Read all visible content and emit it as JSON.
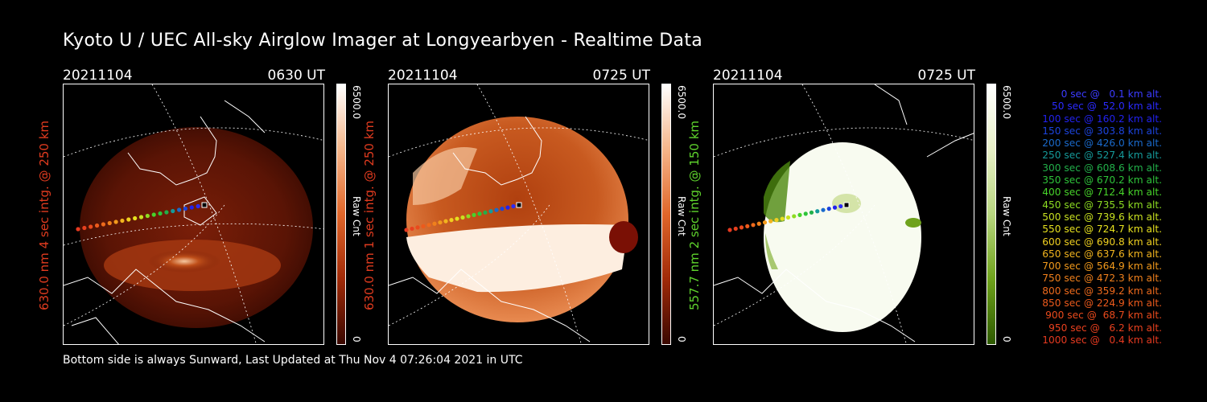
{
  "page": {
    "title": "Kyoto U / UEC All-sky Airglow Imager at Longyearbyen - Realtime Data",
    "footer": "Bottom side is always Sunward, Last Updated at Thu Nov  4 07:26:04 2021 in UTC"
  },
  "panels": [
    {
      "date": "20211104",
      "time": "0630 UT",
      "ylabel": "630.0 nm 4 sec intg. @ 250 km",
      "label_color": "#e03b1f",
      "cbar_max": "6500.0",
      "cbar_min": "0",
      "cbar_unit": "Raw Cnt",
      "scheme": "red",
      "scheme_colors": [
        "#ffffff",
        "#f5b68a",
        "#e0662a",
        "#a02a08",
        "#3a0800"
      ]
    },
    {
      "date": "20211104",
      "time": "0725 UT",
      "ylabel": "630.0 nm 1 sec intg. @ 250 km",
      "label_color": "#e03b1f",
      "cbar_max": "6500.0",
      "cbar_min": "0",
      "cbar_unit": "Raw Cnt",
      "scheme": "red-bright",
      "scheme_colors": [
        "#ffffff",
        "#f5b68a",
        "#e0662a",
        "#a02a08",
        "#3a0800"
      ]
    },
    {
      "date": "20211104",
      "time": "0725 UT",
      "ylabel": "557.7 nm 2 sec intg. @ 150 km",
      "label_color": "#5fd32d",
      "cbar_max": "6500.0",
      "cbar_min": "0",
      "cbar_unit": "Raw Cnt",
      "scheme": "green",
      "scheme_colors": [
        "#ffffff",
        "#e8f0c8",
        "#b8d680",
        "#6fa21c",
        "#2e5a00"
      ]
    }
  ],
  "legend": [
    {
      "text": "0 sec @   0.1 km alt.",
      "color": "#3b3bff"
    },
    {
      "text": "50 sec @  52.0 km alt.",
      "color": "#2a2aff"
    },
    {
      "text": "100 sec @ 160.2 km alt.",
      "color": "#2222ee"
    },
    {
      "text": "150 sec @ 303.8 km alt.",
      "color": "#1c44dd"
    },
    {
      "text": "200 sec @ 426.0 km alt.",
      "color": "#1a6acc"
    },
    {
      "text": "250 sec @ 527.4 km alt.",
      "color": "#159a9a"
    },
    {
      "text": "300 sec @ 608.6 km alt.",
      "color": "#22b04a"
    },
    {
      "text": "350 sec @ 670.2 km alt.",
      "color": "#2ec43a"
    },
    {
      "text": "400 sec @ 712.4 km alt.",
      "color": "#47d42a"
    },
    {
      "text": "450 sec @ 735.5 km alt.",
      "color": "#8ddc22"
    },
    {
      "text": "500 sec @ 739.6 km alt.",
      "color": "#c8e020"
    },
    {
      "text": "550 sec @ 724.7 km alt.",
      "color": "#e6e01e"
    },
    {
      "text": "600 sec @ 690.8 km alt.",
      "color": "#f0d020"
    },
    {
      "text": "650 sec @ 637.6 km alt.",
      "color": "#f2b41e"
    },
    {
      "text": "700 sec @ 564.9 km alt.",
      "color": "#f29a1c"
    },
    {
      "text": "750 sec @ 472.3 km alt.",
      "color": "#f0801c"
    },
    {
      "text": "800 sec @ 359.2 km alt.",
      "color": "#ee6a1c"
    },
    {
      "text": "850 sec @ 224.9 km alt.",
      "color": "#ec5a1c"
    },
    {
      "text": "900 sec @  68.7 km alt.",
      "color": "#ea4a1c"
    },
    {
      "text": "950 sec @   6.2 km alt.",
      "color": "#e8401e"
    },
    {
      "text": "1000 sec @   0.4 km alt.",
      "color": "#e63a20"
    }
  ]
}
